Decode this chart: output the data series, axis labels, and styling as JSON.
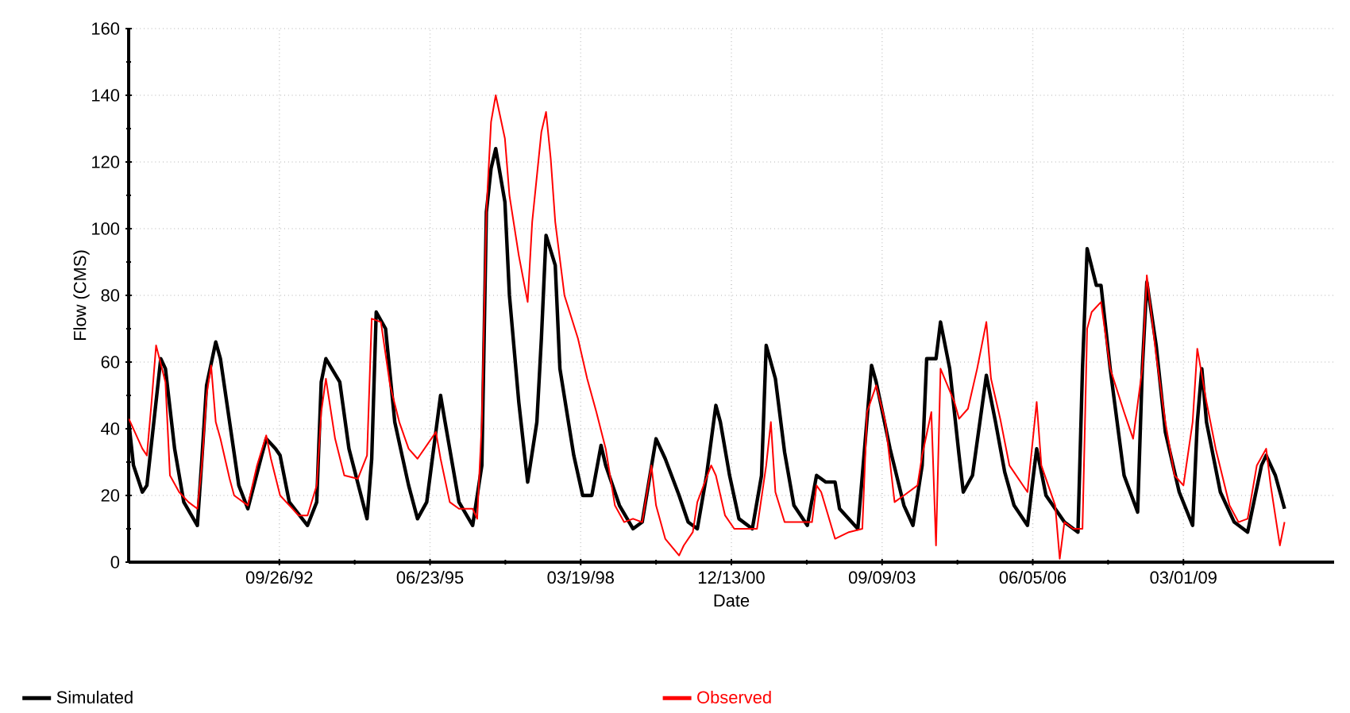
{
  "chart_data": {
    "type": "line",
    "xlabel": "Date",
    "ylabel": "Flow (CMS)",
    "xlim": [
      "1989-12-31",
      "2011-11-26"
    ],
    "ylim": [
      0,
      160
    ],
    "xticks": [
      {
        "value": "1992-09-26",
        "label": "09/26/92"
      },
      {
        "value": "1995-06-23",
        "label": "06/23/95"
      },
      {
        "value": "1998-03-19",
        "label": "03/19/98"
      },
      {
        "value": "2000-12-13",
        "label": "12/13/00"
      },
      {
        "value": "2003-09-09",
        "label": "09/09/03"
      },
      {
        "value": "2006-06-05",
        "label": "06/05/06"
      },
      {
        "value": "2009-03-01",
        "label": "03/01/09"
      }
    ],
    "yticks": [
      0,
      20,
      40,
      60,
      80,
      100,
      120,
      140,
      160
    ],
    "grid": true,
    "legend": "bottom",
    "marker": "none",
    "line_style": "solid",
    "series": [
      {
        "name": "Simulated",
        "color": "#000000",
        "x": [
          "1990-01",
          "1990-02",
          "1990-04",
          "1990-05",
          "1990-08",
          "1990-09",
          "1990-11",
          "1991-01",
          "1991-04",
          "1991-05",
          "1991-06",
          "1991-08",
          "1991-09",
          "1991-11",
          "1992-01",
          "1992-03",
          "1992-06",
          "1992-07",
          "1992-09",
          "1992-10",
          "1992-12",
          "1993-04",
          "1993-06",
          "1993-07",
          "1993-08",
          "1993-11",
          "1994-01",
          "1994-05",
          "1994-06",
          "1994-07",
          "1994-09",
          "1994-11",
          "1995-02",
          "1995-04",
          "1995-06",
          "1995-09",
          "1995-10",
          "1996-01",
          "1996-04",
          "1996-06",
          "1996-07",
          "1996-08",
          "1996-09",
          "1996-11",
          "1996-12",
          "1997-02",
          "1997-04",
          "1997-06",
          "1997-07",
          "1997-08",
          "1997-10",
          "1997-11",
          "1998-02",
          "1998-04",
          "1998-06",
          "1998-08",
          "1998-09",
          "1998-12",
          "1999-03",
          "1999-05",
          "1999-08",
          "1999-10",
          "2000-01",
          "2000-03",
          "2000-05",
          "2000-07",
          "2000-09",
          "2000-10",
          "2000-12",
          "2001-02",
          "2001-05",
          "2001-07",
          "2001-08",
          "2001-10",
          "2001-12",
          "2002-02",
          "2002-05",
          "2002-07",
          "2002-09",
          "2002-11",
          "2002-12",
          "2003-04",
          "2003-05",
          "2003-07",
          "2003-08",
          "2003-11",
          "2004-02",
          "2004-04",
          "2004-06",
          "2004-07",
          "2004-09",
          "2004-10",
          "2004-12",
          "2005-02",
          "2005-03",
          "2005-05",
          "2005-08",
          "2005-10",
          "2005-12",
          "2006-02",
          "2006-05",
          "2006-06",
          "2006-07",
          "2006-09",
          "2007-01",
          "2007-04",
          "2007-05",
          "2007-06",
          "2007-08",
          "2007-09",
          "2007-11",
          "2008-02",
          "2008-05",
          "2008-06",
          "2008-07",
          "2008-09",
          "2008-11",
          "2009-02",
          "2009-05",
          "2009-06",
          "2009-07",
          "2009-08",
          "2009-11",
          "2010-02",
          "2010-05",
          "2010-08",
          "2010-09",
          "2010-11",
          "2011-01"
        ],
        "values": [
          42,
          29,
          21,
          23,
          61,
          58,
          34,
          18,
          11,
          31,
          53,
          66,
          61,
          42,
          23,
          16,
          32,
          37,
          34,
          32,
          18,
          11,
          18,
          54,
          61,
          54,
          34,
          13,
          31,
          75,
          70,
          42,
          23,
          13,
          18,
          50,
          42,
          18,
          11,
          29,
          105,
          118,
          124,
          108,
          80,
          48,
          24,
          42,
          67,
          98,
          89,
          58,
          32,
          20,
          20,
          35,
          29,
          17,
          10,
          12,
          37,
          31,
          20,
          12,
          10,
          26,
          47,
          42,
          26,
          13,
          10,
          26,
          65,
          55,
          33,
          17,
          11,
          26,
          24,
          24,
          16,
          10,
          26,
          59,
          54,
          34,
          17,
          11,
          29,
          61,
          61,
          72,
          58,
          32,
          21,
          26,
          56,
          42,
          27,
          17,
          11,
          23,
          34,
          20,
          12,
          9,
          58,
          94,
          83,
          83,
          58,
          26,
          15,
          58,
          84,
          65,
          39,
          21,
          11,
          42,
          58,
          42,
          21,
          12,
          9,
          29,
          32,
          26,
          16
        ]
      },
      {
        "name": "Observed",
        "color": "#ff0000",
        "x": [
          "1990-01",
          "1990-04",
          "1990-05",
          "1990-06",
          "1990-07",
          "1990-09",
          "1990-10",
          "1990-12",
          "1991-02",
          "1991-04",
          "1991-05",
          "1991-06",
          "1991-07",
          "1991-08",
          "1991-09",
          "1991-11",
          "1991-12",
          "1992-03",
          "1992-05",
          "1992-07",
          "1992-08",
          "1992-10",
          "1993-02",
          "1993-04",
          "1993-06",
          "1993-07",
          "1993-08",
          "1993-10",
          "1993-12",
          "1994-03",
          "1994-05",
          "1994-06",
          "1994-08",
          "1994-10",
          "1994-12",
          "1995-02",
          "1995-04",
          "1995-08",
          "1995-09",
          "1995-11",
          "1996-01",
          "1996-04",
          "1996-05",
          "1996-06",
          "1996-07",
          "1996-08",
          "1996-09",
          "1996-11",
          "1996-12",
          "1997-02",
          "1997-04",
          "1997-05",
          "1997-07",
          "1997-08",
          "1997-09",
          "1997-10",
          "1997-12",
          "1998-03",
          "1998-05",
          "1998-07",
          "1998-09",
          "1998-11",
          "1999-01",
          "1999-03",
          "1999-05",
          "1999-07",
          "1999-08",
          "1999-10",
          "2000-01",
          "2000-02",
          "2000-04",
          "2000-05",
          "2000-08",
          "2000-09",
          "2000-11",
          "2001-01",
          "2001-06",
          "2001-08",
          "2001-09",
          "2001-10",
          "2001-12",
          "2002-03",
          "2002-06",
          "2002-07",
          "2002-08",
          "2002-11",
          "2003-02",
          "2003-05",
          "2003-06",
          "2003-08",
          "2003-10",
          "2003-12",
          "2004-02",
          "2004-05",
          "2004-06",
          "2004-08",
          "2004-09",
          "2004-10",
          "2005-01",
          "2005-02",
          "2005-04",
          "2005-06",
          "2005-08",
          "2005-09",
          "2005-11",
          "2006-01",
          "2006-05",
          "2006-07",
          "2006-08",
          "2006-11",
          "2006-12",
          "2007-01",
          "2007-03",
          "2007-05",
          "2007-06",
          "2007-07",
          "2007-09",
          "2007-11",
          "2008-02",
          "2008-04",
          "2008-06",
          "2008-07",
          "2008-09",
          "2008-11",
          "2009-01",
          "2009-03",
          "2009-05",
          "2009-06",
          "2009-08",
          "2009-10",
          "2010-01",
          "2010-03",
          "2010-05",
          "2010-07",
          "2010-09",
          "2010-10",
          "2010-12",
          "2011-01"
        ],
        "values": [
          43,
          34,
          32,
          48,
          65,
          54,
          26,
          21,
          18,
          16,
          29,
          50,
          59,
          42,
          37,
          25,
          20,
          17,
          29,
          38,
          31,
          20,
          14,
          14,
          23,
          45,
          55,
          37,
          26,
          25,
          32,
          73,
          72,
          53,
          42,
          34,
          31,
          39,
          31,
          18,
          16,
          16,
          13,
          42,
          105,
          132,
          140,
          127,
          110,
          92,
          78,
          102,
          129,
          135,
          121,
          102,
          80,
          67,
          55,
          45,
          34,
          17,
          12,
          13,
          12,
          29,
          17,
          7,
          2,
          5,
          9,
          18,
          29,
          26,
          14,
          10,
          10,
          29,
          42,
          21,
          12,
          12,
          12,
          23,
          21,
          7,
          9,
          10,
          45,
          53,
          42,
          18,
          20,
          23,
          32,
          45,
          5,
          58,
          48,
          43,
          46,
          58,
          72,
          55,
          43,
          29,
          21,
          48,
          29,
          17,
          1,
          12,
          10,
          10,
          70,
          75,
          78,
          58,
          45,
          37,
          58,
          86,
          62,
          42,
          26,
          23,
          42,
          64,
          48,
          34,
          17,
          12,
          13,
          29,
          34,
          23,
          5,
          12
        ]
      }
    ]
  }
}
